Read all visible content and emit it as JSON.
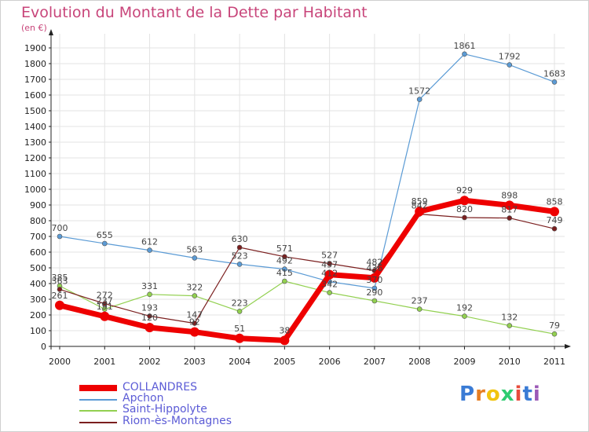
{
  "title": "Evolution du Montant de la Dette par Habitant",
  "subtitle": "(en €)",
  "logo": "Proxiti",
  "chart_data": {
    "type": "line",
    "title": "Evolution du Montant de la Dette par Habitant",
    "subtitle": "(en €)",
    "xlabel": "",
    "ylabel": "",
    "x": [
      "2000",
      "2001",
      "2002",
      "2003",
      "2004",
      "2005",
      "2006",
      "2007",
      "2008",
      "2009",
      "2010",
      "2011"
    ],
    "ylim": [
      0,
      1950
    ],
    "yticks": [
      0,
      100,
      200,
      300,
      400,
      500,
      600,
      700,
      800,
      900,
      1000,
      1100,
      1200,
      1300,
      1400,
      1500,
      1600,
      1700,
      1800,
      1900
    ],
    "grid": true,
    "legend_position": "bottom-left",
    "series": [
      {
        "name": "COLLANDRES",
        "color": "#ee0000",
        "values": [
          261,
          191,
          120,
          92,
          51,
          38,
          457,
          436,
          859,
          929,
          898,
          858
        ]
      },
      {
        "name": "Apchon",
        "color": "#5b9bd5",
        "values": [
          700,
          655,
          612,
          563,
          523,
          492,
          412,
          370,
          1572,
          1861,
          1792,
          1683
        ]
      },
      {
        "name": "Saint-Hippolyte",
        "color": "#92d050",
        "values": [
          385,
          237,
          331,
          322,
          223,
          415,
          342,
          290,
          237,
          192,
          132,
          79
        ]
      },
      {
        "name": "Riom-ès-Montagnes",
        "color": "#7b1f1f",
        "values": [
          363,
          272,
          193,
          147,
          630,
          571,
          527,
          482,
          842,
          820,
          817,
          749
        ]
      }
    ]
  }
}
